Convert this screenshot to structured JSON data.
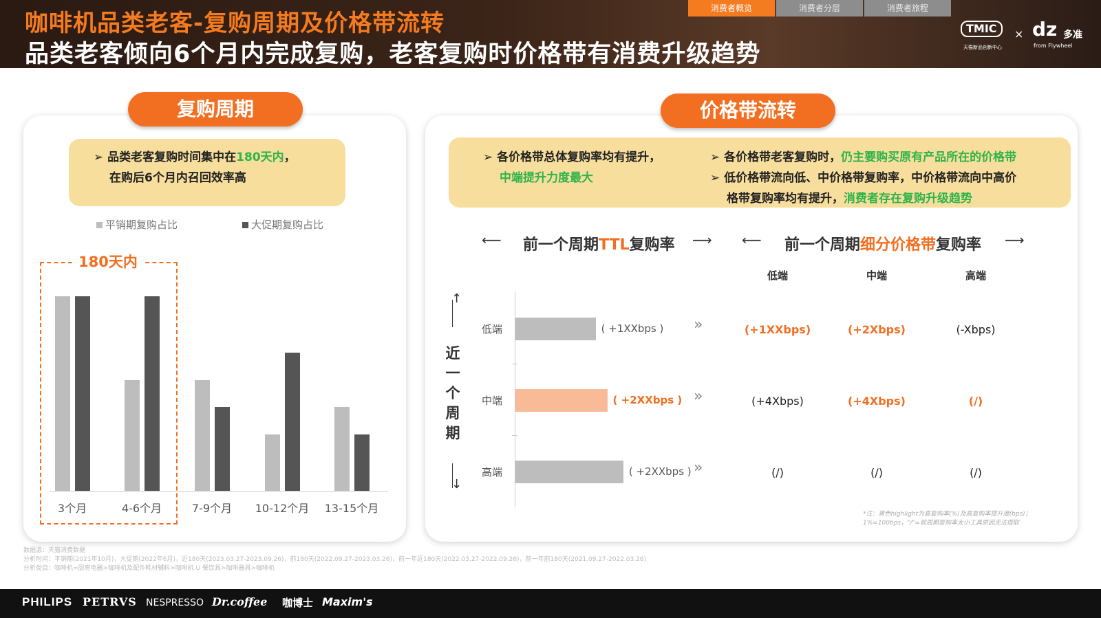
{
  "header": {
    "title_main": "咖啡机品类老客-复购周期及价格带流转",
    "title_sub": "品类老客倾向6个月内完成复购，老客复购时价格带有消费升级趋势",
    "tabs": [
      "消费者概览",
      "消费者分层",
      "消费者旅程"
    ],
    "active_tab": "消费者概览",
    "logo_tmic": "TMIC",
    "logo_tmic_sub": "天猫新品创新中心",
    "logo_x": "×",
    "logo_dz": "dz",
    "logo_dz_cn": "多准",
    "logo_dz_sub": "from Flywheel"
  },
  "left": {
    "pill": "复购周期",
    "note_line1_a": "品类老客复购时间集中在",
    "note_line1_b": "180天内",
    "note_line1_c": "，",
    "note_line2": "在购后6个月内召回效率高",
    "legend_light": "平销期复购占比",
    "legend_dark": "大促期复购占比",
    "dash_label": "180天内"
  },
  "chart_data": {
    "type": "bar",
    "categories": [
      "3个月",
      "4-6个月",
      "7-9个月",
      "10-12个月",
      "13-15个月"
    ],
    "series": [
      {
        "name": "平销期复购占比",
        "values": [
          100,
          57,
          57,
          29,
          43
        ]
      },
      {
        "name": "大促期复购占比",
        "values": [
          100,
          100,
          43,
          71,
          29
        ]
      }
    ],
    "colors": [
      "#bdbdbd",
      "#555555"
    ]
  },
  "right": {
    "pill": "价格带流转",
    "note_a_line1": "各价格带总体复购率均有提升，",
    "note_a_line2": "中端提升力度最大",
    "note_b_line1_a": "各价格带老客复购时，",
    "note_b_line1_b": "仍主要购买原有产品所在的价格带",
    "note_b_line2": "低价格带流向低、中价格带复购率，中价格带流向中高价",
    "note_b_line3_a": "格带复购率均有提升，",
    "note_b_line3_b": "消费者存在复购升级趋势",
    "hdr1_a": "前一个周期",
    "hdr1_b": "TTL",
    "hdr1_c": "复购率",
    "hdr2_a": "前一个周期",
    "hdr2_b": "细分价格带",
    "hdr2_c": "复购率",
    "col_headers": [
      "低端",
      "中端",
      "高端"
    ],
    "vertical_label": "近一个周期",
    "rows": [
      {
        "label": "低端",
        "ttl": "( +1XXbps )",
        "ttl_share": 0.55,
        "cells": [
          "(+1XXbps)",
          "(+2Xbps)",
          "(-Xbps)"
        ],
        "hi": [
          true,
          true,
          false
        ],
        "ttl_hi": false
      },
      {
        "label": "中端",
        "ttl": "( +2XXbps )",
        "ttl_share": 0.63,
        "cells": [
          "(+4Xbps)",
          "(+4Xbps)",
          "(/)"
        ],
        "hi": [
          false,
          true,
          true
        ],
        "ttl_hi": true
      },
      {
        "label": "高端",
        "ttl": "( +2XXbps )",
        "ttl_share": 0.74,
        "cells": [
          "(/)",
          "(/)",
          "(/)"
        ],
        "hi": [
          false,
          false,
          false
        ],
        "ttl_hi": false
      }
    ],
    "footnote_1": "*注：黄色highlight为高复购率(%)及高复购率提升度(bps)；",
    "footnote_2": "1%=100bps，\"/\"=前周期复购率太小工具原因无法提取"
  },
  "source": {
    "line1": "数据源：天猫消费数据",
    "line2": "分析时间：平销期(2021年10月)，大促期(2022年6月)，近180天(2023.03.27-2023.09.26)，前180天(2022.09.27-2023.03.26)，前一年近180天(2022.03.27-2022.09.26)，前一年前180天(2021.09.27-2022.03.26)",
    "line3": "分析类目：咖啡机=厨房电器>咖啡机及配件耗材辅料>咖啡机 U 餐饮具>咖啡器具>咖啡机"
  },
  "brands": [
    "PHILIPS",
    "PETRVS",
    "NESPRESSO",
    "Dr.coffee",
    "咖博士",
    "Maxim's"
  ]
}
